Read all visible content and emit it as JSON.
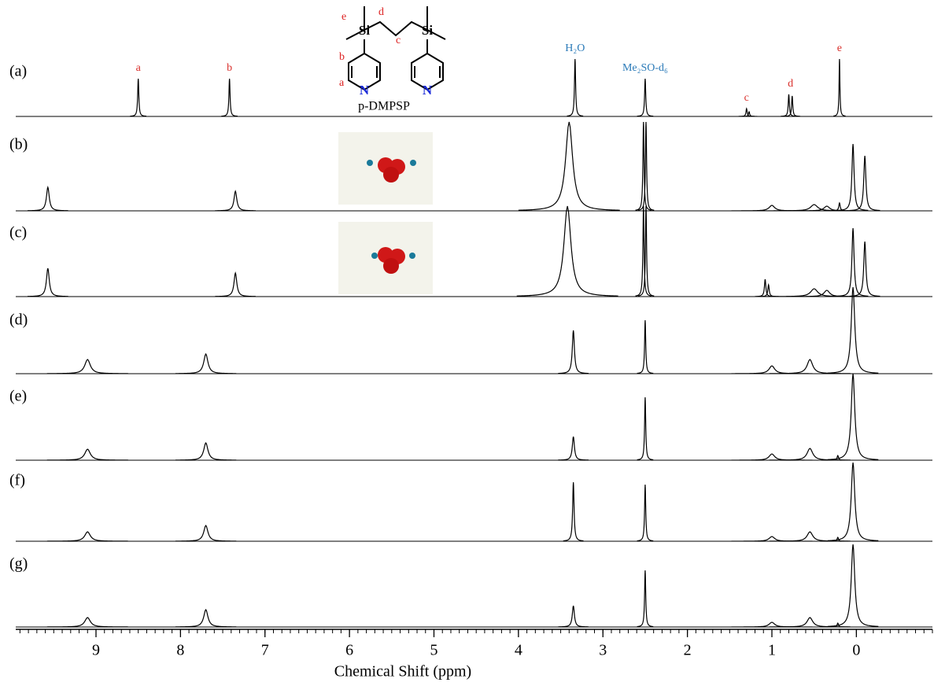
{
  "chart_data": {
    "type": "nmr-stack",
    "x_label": "Chemical Shift (ppm)",
    "xlim": [
      9.95,
      -0.9
    ],
    "xticks": [
      9,
      8,
      7,
      6,
      5,
      4,
      3,
      2,
      1,
      0
    ],
    "minor_tick_interval": 0.1,
    "series": [
      {
        "name": "(a)",
        "color": "#000000",
        "peaks": [
          8.5,
          7.42,
          3.33,
          2.5,
          1.3,
          1.27,
          0.8,
          0.76,
          0.2
        ],
        "intensities": [
          0.48,
          0.48,
          0.73,
          0.48,
          0.1,
          0.06,
          0.28,
          0.26,
          0.73
        ],
        "widths": [
          0.008,
          0.008,
          0.008,
          0.008,
          0.008,
          0.008,
          0.008,
          0.008,
          0.006
        ]
      },
      {
        "name": "(b)",
        "color": "#000000",
        "peaks": [
          9.57,
          7.35,
          3.4,
          2.52,
          2.49,
          1.0,
          0.5,
          0.35,
          0.2,
          0.04,
          -0.1
        ],
        "intensities": [
          0.3,
          0.25,
          1.13,
          1.13,
          1.13,
          0.07,
          0.08,
          0.06,
          0.1,
          0.85,
          0.7
        ],
        "widths": [
          0.02,
          0.02,
          0.05,
          0.008,
          0.008,
          0.04,
          0.05,
          0.04,
          0.01,
          0.015,
          0.015
        ]
      },
      {
        "name": "(c)",
        "color": "#000000",
        "peaks": [
          9.57,
          7.35,
          3.42,
          2.52,
          2.49,
          1.08,
          1.04,
          0.5,
          0.35,
          0.04,
          -0.1
        ],
        "intensities": [
          0.36,
          0.3,
          1.15,
          1.15,
          1.15,
          0.22,
          0.15,
          0.1,
          0.08,
          0.87,
          0.7
        ],
        "widths": [
          0.02,
          0.02,
          0.05,
          0.008,
          0.008,
          0.01,
          0.01,
          0.05,
          0.04,
          0.015,
          0.015
        ]
      },
      {
        "name": "(d)",
        "color": "#000000",
        "peaks": [
          9.1,
          7.7,
          3.35,
          2.5,
          1.0,
          0.55,
          0.04
        ],
        "intensities": [
          0.18,
          0.25,
          0.55,
          0.68,
          0.1,
          0.18,
          1.1
        ],
        "widths": [
          0.04,
          0.03,
          0.015,
          0.008,
          0.04,
          0.04,
          0.025
        ]
      },
      {
        "name": "(e)",
        "color": "#000000",
        "peaks": [
          9.1,
          7.7,
          3.35,
          2.5,
          1.0,
          0.55,
          0.22,
          0.04
        ],
        "intensities": [
          0.14,
          0.22,
          0.3,
          0.8,
          0.08,
          0.15,
          0.06,
          1.1
        ],
        "widths": [
          0.04,
          0.03,
          0.015,
          0.008,
          0.04,
          0.04,
          0.01,
          0.025
        ]
      },
      {
        "name": "(f)",
        "color": "#000000",
        "peaks": [
          9.1,
          7.7,
          3.35,
          2.5,
          1.0,
          0.55,
          0.22,
          0.04
        ],
        "intensities": [
          0.12,
          0.2,
          0.75,
          0.72,
          0.06,
          0.12,
          0.05,
          1.0
        ],
        "widths": [
          0.04,
          0.03,
          0.01,
          0.008,
          0.04,
          0.04,
          0.01,
          0.025
        ]
      },
      {
        "name": "(g)",
        "color": "#000000",
        "peaks": [
          9.1,
          7.7,
          3.35,
          2.5,
          1.0,
          0.55,
          0.22,
          0.04
        ],
        "intensities": [
          0.12,
          0.22,
          0.27,
          0.72,
          0.06,
          0.12,
          0.05,
          1.05
        ],
        "widths": [
          0.04,
          0.03,
          0.015,
          0.008,
          0.04,
          0.04,
          0.01,
          0.025
        ]
      }
    ],
    "annotations": [
      {
        "text": "a",
        "x": 8.5,
        "color": "#d9302c"
      },
      {
        "text": "b",
        "x": 7.42,
        "color": "#d9302c"
      },
      {
        "text": "H₂O",
        "x": 3.33,
        "color": "#2a7ab8"
      },
      {
        "text": "Me₂SO-d₆",
        "x": 2.5,
        "color": "#2a7ab8"
      },
      {
        "text": "c",
        "x": 1.3,
        "color": "#d9302c"
      },
      {
        "text": "d",
        "x": 0.78,
        "color": "#d9302c"
      },
      {
        "text": "e",
        "x": 0.2,
        "color": "#d9302c"
      }
    ]
  },
  "structure": {
    "name": "p-DMPSP",
    "atoms": [
      "Si",
      "Si",
      "N",
      "N"
    ],
    "labels": [
      "e",
      "d",
      "c",
      "b",
      "a"
    ]
  }
}
